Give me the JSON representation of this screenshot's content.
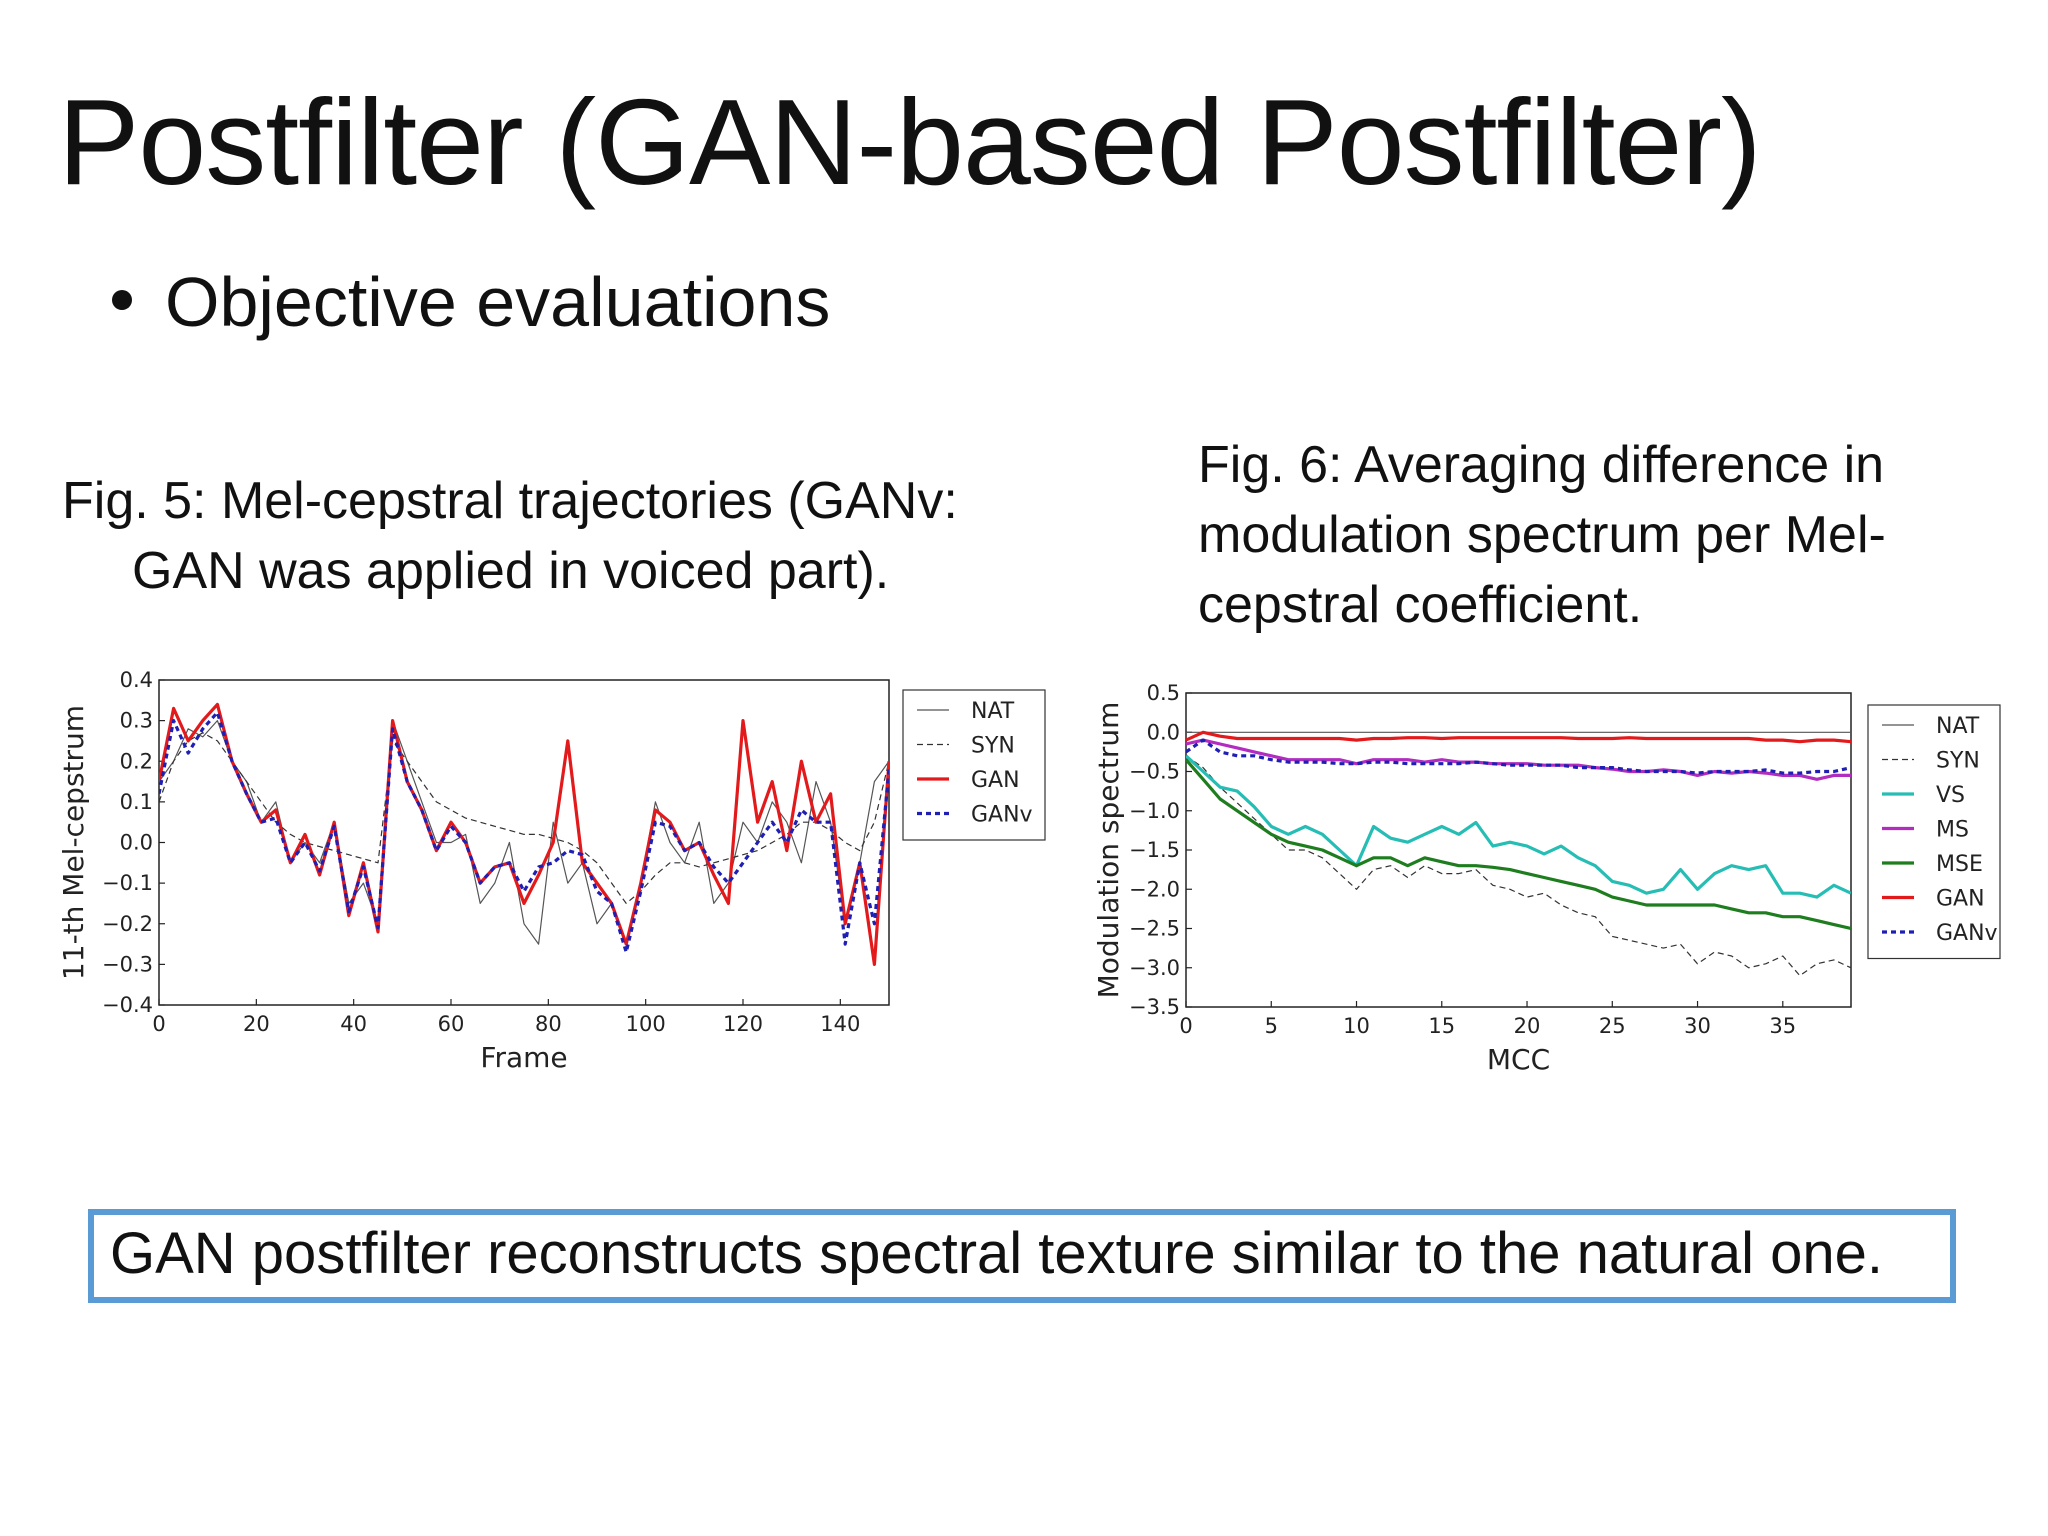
{
  "slide": {
    "title": "Postfilter (GAN-based Postfilter)",
    "bullet": "Objective evaluations",
    "fig5_caption_line1": "Fig. 5: Mel-cepstral trajectories (GANv:",
    "fig5_caption_line2": "GAN was applied in voiced part).",
    "fig6_caption_line1": "Fig. 6: Averaging difference in",
    "fig6_caption_line2": "modulation spectrum per Mel-",
    "fig6_caption_line3": "cepstral coefficient.",
    "summary": "GAN postfilter reconstructs spectral texture similar to the natural one.",
    "summary_border_color": "#5b9bd5"
  },
  "chart_data": [
    {
      "type": "line",
      "xlabel": "Frame",
      "ylabel": "11-th Mel-cepstrum",
      "xlim": [
        0,
        150
      ],
      "ylim": [
        -0.4,
        0.4
      ],
      "xticks": [
        "0",
        "20",
        "40",
        "60",
        "80",
        "100",
        "120",
        "140"
      ],
      "yticks": [
        "0.4",
        "0.3",
        "0.2",
        "0.1",
        "0.0",
        "−0.1",
        "−0.2",
        "−0.3",
        "−0.4"
      ],
      "legend_position": "outside-right",
      "x": [
        0,
        3,
        6,
        9,
        12,
        15,
        18,
        21,
        24,
        27,
        30,
        33,
        36,
        39,
        42,
        45,
        48,
        51,
        54,
        57,
        60,
        63,
        66,
        69,
        72,
        75,
        78,
        81,
        84,
        87,
        90,
        93,
        96,
        99,
        102,
        105,
        108,
        111,
        114,
        117,
        120,
        123,
        126,
        129,
        132,
        135,
        138,
        141,
        144,
        147,
        150
      ],
      "series": [
        {
          "name": "NAT",
          "color": "#555555",
          "style": "solid-thin",
          "values": [
            0.15,
            0.2,
            0.28,
            0.26,
            0.3,
            0.2,
            0.15,
            0.05,
            0.1,
            -0.05,
            0.0,
            -0.05,
            0.05,
            -0.15,
            -0.1,
            -0.2,
            0.3,
            0.2,
            0.1,
            0.0,
            0.0,
            0.02,
            -0.15,
            -0.1,
            0.0,
            -0.2,
            -0.25,
            0.05,
            -0.1,
            -0.05,
            -0.2,
            -0.15,
            -0.25,
            -0.1,
            0.1,
            0.0,
            -0.05,
            0.05,
            -0.15,
            -0.1,
            0.05,
            0.0,
            0.1,
            0.05,
            -0.05,
            0.15,
            0.05,
            -0.2,
            -0.05,
            0.15,
            0.2
          ]
        },
        {
          "name": "SYN",
          "color": "#333333",
          "style": "dashed-thin",
          "values": [
            0.1,
            0.2,
            0.25,
            0.27,
            0.25,
            0.2,
            0.15,
            0.1,
            0.05,
            0.02,
            0.0,
            -0.01,
            -0.02,
            -0.03,
            -0.04,
            -0.05,
            0.25,
            0.2,
            0.15,
            0.1,
            0.08,
            0.06,
            0.05,
            0.04,
            0.03,
            0.02,
            0.02,
            0.01,
            0.0,
            -0.02,
            -0.05,
            -0.1,
            -0.15,
            -0.12,
            -0.08,
            -0.05,
            -0.05,
            -0.06,
            -0.05,
            -0.04,
            -0.03,
            -0.02,
            0.0,
            0.02,
            0.05,
            0.05,
            0.03,
            0.0,
            -0.02,
            0.05,
            0.2
          ]
        },
        {
          "name": "GAN",
          "color": "#e31a1c",
          "style": "solid-thick",
          "values": [
            0.15,
            0.33,
            0.25,
            0.3,
            0.34,
            0.2,
            0.12,
            0.05,
            0.08,
            -0.05,
            0.02,
            -0.08,
            0.05,
            -0.18,
            -0.05,
            -0.22,
            0.3,
            0.15,
            0.08,
            -0.02,
            0.05,
            0.0,
            -0.1,
            -0.06,
            -0.05,
            -0.15,
            -0.08,
            0.0,
            0.25,
            -0.05,
            -0.1,
            -0.15,
            -0.25,
            -0.1,
            0.08,
            0.05,
            -0.02,
            0.0,
            -0.08,
            -0.15,
            0.3,
            0.05,
            0.15,
            -0.02,
            0.2,
            0.05,
            0.12,
            -0.2,
            -0.05,
            -0.3,
            0.2
          ]
        },
        {
          "name": "GANv",
          "color": "#1f1fb4",
          "style": "dotted-thick",
          "values": [
            0.12,
            0.3,
            0.22,
            0.28,
            0.32,
            0.2,
            0.12,
            0.05,
            0.06,
            -0.05,
            0.0,
            -0.07,
            0.04,
            -0.17,
            -0.06,
            -0.21,
            0.28,
            0.15,
            0.08,
            -0.02,
            0.04,
            0.0,
            -0.1,
            -0.06,
            -0.05,
            -0.12,
            -0.06,
            -0.05,
            -0.02,
            -0.03,
            -0.12,
            -0.15,
            -0.27,
            -0.12,
            0.05,
            0.04,
            -0.02,
            0.0,
            -0.06,
            -0.1,
            -0.05,
            0.0,
            0.05,
            0.0,
            0.08,
            0.05,
            0.05,
            -0.25,
            -0.05,
            -0.2,
            0.18
          ]
        }
      ]
    },
    {
      "type": "line",
      "xlabel": "MCC",
      "ylabel": "Modulation spectrum",
      "xlim": [
        0,
        39
      ],
      "ylim": [
        -3.5,
        0.5
      ],
      "xticks": [
        "0",
        "5",
        "10",
        "15",
        "20",
        "25",
        "30",
        "35"
      ],
      "yticks": [
        "0.5",
        "0.0",
        "−0.5",
        "−1.0",
        "−1.5",
        "−2.0",
        "−2.5",
        "−3.0",
        "−3.5"
      ],
      "legend_position": "outside-right",
      "x": [
        0,
        1,
        2,
        3,
        4,
        5,
        6,
        7,
        8,
        9,
        10,
        11,
        12,
        13,
        14,
        15,
        16,
        17,
        18,
        19,
        20,
        21,
        22,
        23,
        24,
        25,
        26,
        27,
        28,
        29,
        30,
        31,
        32,
        33,
        34,
        35,
        36,
        37,
        38,
        39
      ],
      "series": [
        {
          "name": "NAT",
          "color": "#555555",
          "style": "solid-thin",
          "values": [
            0,
            0,
            0,
            0,
            0,
            0,
            0,
            0,
            0,
            0,
            0,
            0,
            0,
            0,
            0,
            0,
            0,
            0,
            0,
            0,
            0,
            0,
            0,
            0,
            0,
            0,
            0,
            0,
            0,
            0,
            0,
            0,
            0,
            0,
            0,
            0,
            0,
            0,
            0,
            0
          ]
        },
        {
          "name": "SYN",
          "color": "#333333",
          "style": "dashed-thin",
          "values": [
            -0.3,
            -0.45,
            -0.7,
            -0.9,
            -1.1,
            -1.3,
            -1.5,
            -1.5,
            -1.6,
            -1.8,
            -2.0,
            -1.75,
            -1.7,
            -1.85,
            -1.7,
            -1.8,
            -1.8,
            -1.75,
            -1.95,
            -2.0,
            -2.1,
            -2.05,
            -2.2,
            -2.3,
            -2.35,
            -2.6,
            -2.65,
            -2.7,
            -2.75,
            -2.7,
            -2.95,
            -2.8,
            -2.85,
            -3.0,
            -2.95,
            -2.85,
            -3.1,
            -2.95,
            -2.9,
            -3.0
          ]
        },
        {
          "name": "VS",
          "color": "#26bdb5",
          "style": "solid-thick",
          "values": [
            -0.3,
            -0.5,
            -0.7,
            -0.75,
            -0.95,
            -1.2,
            -1.3,
            -1.2,
            -1.3,
            -1.5,
            -1.7,
            -1.2,
            -1.35,
            -1.4,
            -1.3,
            -1.2,
            -1.3,
            -1.15,
            -1.45,
            -1.4,
            -1.45,
            -1.55,
            -1.45,
            -1.6,
            -1.7,
            -1.9,
            -1.95,
            -2.05,
            -2.0,
            -1.75,
            -2.0,
            -1.8,
            -1.7,
            -1.75,
            -1.7,
            -2.05,
            -2.05,
            -2.1,
            -1.95,
            -2.05
          ]
        },
        {
          "name": "MS",
          "color": "#b22cc0",
          "style": "solid-thick",
          "values": [
            -0.15,
            -0.1,
            -0.15,
            -0.2,
            -0.25,
            -0.3,
            -0.35,
            -0.35,
            -0.35,
            -0.35,
            -0.4,
            -0.35,
            -0.35,
            -0.35,
            -0.38,
            -0.35,
            -0.38,
            -0.38,
            -0.4,
            -0.4,
            -0.4,
            -0.42,
            -0.42,
            -0.42,
            -0.45,
            -0.47,
            -0.5,
            -0.5,
            -0.48,
            -0.5,
            -0.55,
            -0.5,
            -0.52,
            -0.5,
            -0.52,
            -0.55,
            -0.55,
            -0.6,
            -0.55,
            -0.55
          ]
        },
        {
          "name": "MSE",
          "color": "#1e7d1e",
          "style": "solid-thick",
          "values": [
            -0.35,
            -0.6,
            -0.85,
            -1.0,
            -1.15,
            -1.3,
            -1.4,
            -1.45,
            -1.5,
            -1.6,
            -1.7,
            -1.6,
            -1.6,
            -1.7,
            -1.6,
            -1.65,
            -1.7,
            -1.7,
            -1.72,
            -1.75,
            -1.8,
            -1.85,
            -1.9,
            -1.95,
            -2.0,
            -2.1,
            -2.15,
            -2.2,
            -2.2,
            -2.2,
            -2.2,
            -2.2,
            -2.25,
            -2.3,
            -2.3,
            -2.35,
            -2.35,
            -2.4,
            -2.45,
            -2.5
          ]
        },
        {
          "name": "GAN",
          "color": "#e31a1c",
          "style": "solid-thick",
          "values": [
            -0.1,
            0.0,
            -0.05,
            -0.08,
            -0.08,
            -0.08,
            -0.08,
            -0.08,
            -0.08,
            -0.08,
            -0.1,
            -0.08,
            -0.08,
            -0.07,
            -0.07,
            -0.08,
            -0.07,
            -0.07,
            -0.07,
            -0.07,
            -0.07,
            -0.07,
            -0.07,
            -0.08,
            -0.08,
            -0.08,
            -0.07,
            -0.08,
            -0.08,
            -0.08,
            -0.08,
            -0.08,
            -0.08,
            -0.08,
            -0.1,
            -0.1,
            -0.12,
            -0.1,
            -0.1,
            -0.12
          ]
        },
        {
          "name": "GANv",
          "color": "#1f1fb4",
          "style": "dotted-thick",
          "values": [
            -0.25,
            -0.1,
            -0.25,
            -0.3,
            -0.3,
            -0.35,
            -0.38,
            -0.38,
            -0.38,
            -0.4,
            -0.4,
            -0.38,
            -0.38,
            -0.4,
            -0.4,
            -0.4,
            -0.4,
            -0.38,
            -0.4,
            -0.42,
            -0.42,
            -0.42,
            -0.42,
            -0.45,
            -0.45,
            -0.45,
            -0.48,
            -0.5,
            -0.5,
            -0.5,
            -0.52,
            -0.5,
            -0.5,
            -0.5,
            -0.48,
            -0.52,
            -0.52,
            -0.5,
            -0.5,
            -0.45
          ]
        }
      ]
    }
  ]
}
